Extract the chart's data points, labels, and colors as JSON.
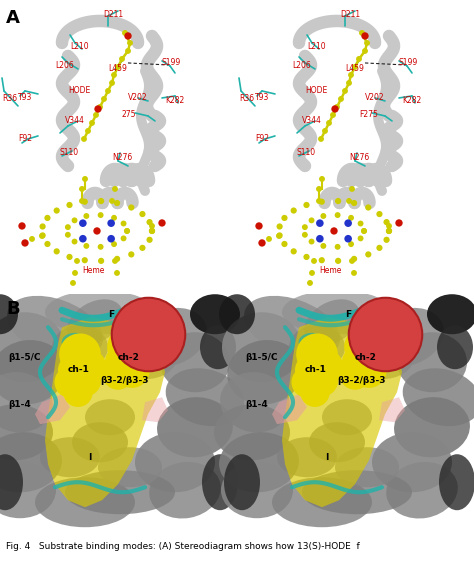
{
  "figure_width": 4.74,
  "figure_height": 5.82,
  "dpi": 100,
  "bg_color": "#ffffff",
  "panel_a_label": "A",
  "panel_b_label": "B",
  "caption": "Fig. 4   Substrate binding modes: (A) Stereodiagram shows how 13(S)-HODE  f",
  "caption_fontsize": 6.5,
  "panel_label_fontsize": 13,
  "ribbon_color": "#c8c8c8",
  "cyan_color": "#20b2aa",
  "yellow_color": "#cccc00",
  "red_color": "#cc1100",
  "blue_color": "#2233cc",
  "black_color": "#000000",
  "label_color_red": "#cc0000",
  "label_fontsize": 5.5,
  "panel_b_gray": "#909090",
  "panel_b_dark": "#404040",
  "panel_b_yellow": "#d4c900",
  "panel_b_red": "#cc3333",
  "panel_b_cyan": "#20b2aa",
  "panel_b_pink": "#e8a0a0"
}
